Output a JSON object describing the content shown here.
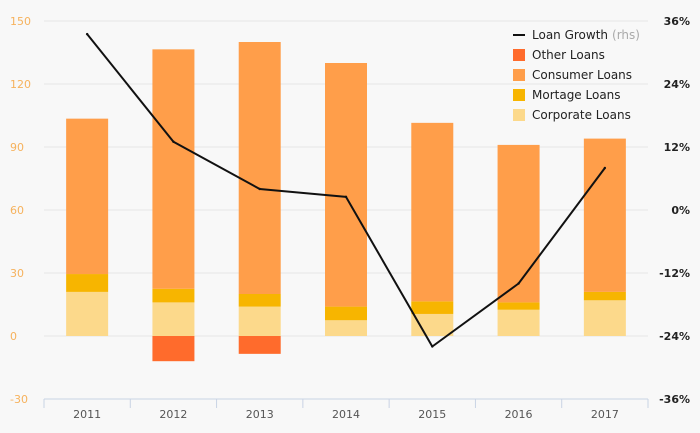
{
  "chart_data": {
    "type": "bar",
    "categories": [
      "2011",
      "2012",
      "2013",
      "2014",
      "2015",
      "2016",
      "2017"
    ],
    "series": [
      {
        "name": "Corporate Loans",
        "kind": "bar",
        "color": "#fcd98b",
        "values": [
          21,
          16,
          14,
          7.5,
          10.5,
          12.5,
          17
        ]
      },
      {
        "name": "Mortage Loans",
        "kind": "bar",
        "color": "#f7b500",
        "values": [
          8.5,
          6.5,
          6,
          6.5,
          6,
          3.5,
          4
        ]
      },
      {
        "name": "Consumer Loans",
        "kind": "bar",
        "color": "#ff9e4a",
        "values": [
          74,
          114,
          120,
          116,
          85,
          75,
          73
        ]
      },
      {
        "name": "Other Loans",
        "kind": "bar",
        "color": "#ff6b2c",
        "values": [
          0,
          -12,
          -8.5,
          0,
          0,
          0,
          0
        ]
      },
      {
        "name": "Loan Growth",
        "name_suffix": "(rhs)",
        "kind": "line",
        "axis": "right",
        "color": "#111111",
        "values": [
          33.5,
          13,
          4,
          2.5,
          -26,
          -14,
          8
        ]
      }
    ],
    "yaxis_left": {
      "min": -30,
      "max": 150,
      "ticks": [
        "-30",
        "0",
        "30",
        "60",
        "90",
        "120",
        "150"
      ]
    },
    "yaxis_right": {
      "min": -36,
      "max": 36,
      "ticks": [
        "-36%",
        "-24%",
        "-12%",
        "0%",
        "12%",
        "24%",
        "36%"
      ]
    },
    "legend": {
      "position": "top-right",
      "order": [
        "Loan Growth",
        "Other Loans",
        "Consumer Loans",
        "Mortage Loans",
        "Corporate Loans"
      ]
    },
    "grid": true,
    "title": "",
    "xlabel": "",
    "ylabel": ""
  }
}
